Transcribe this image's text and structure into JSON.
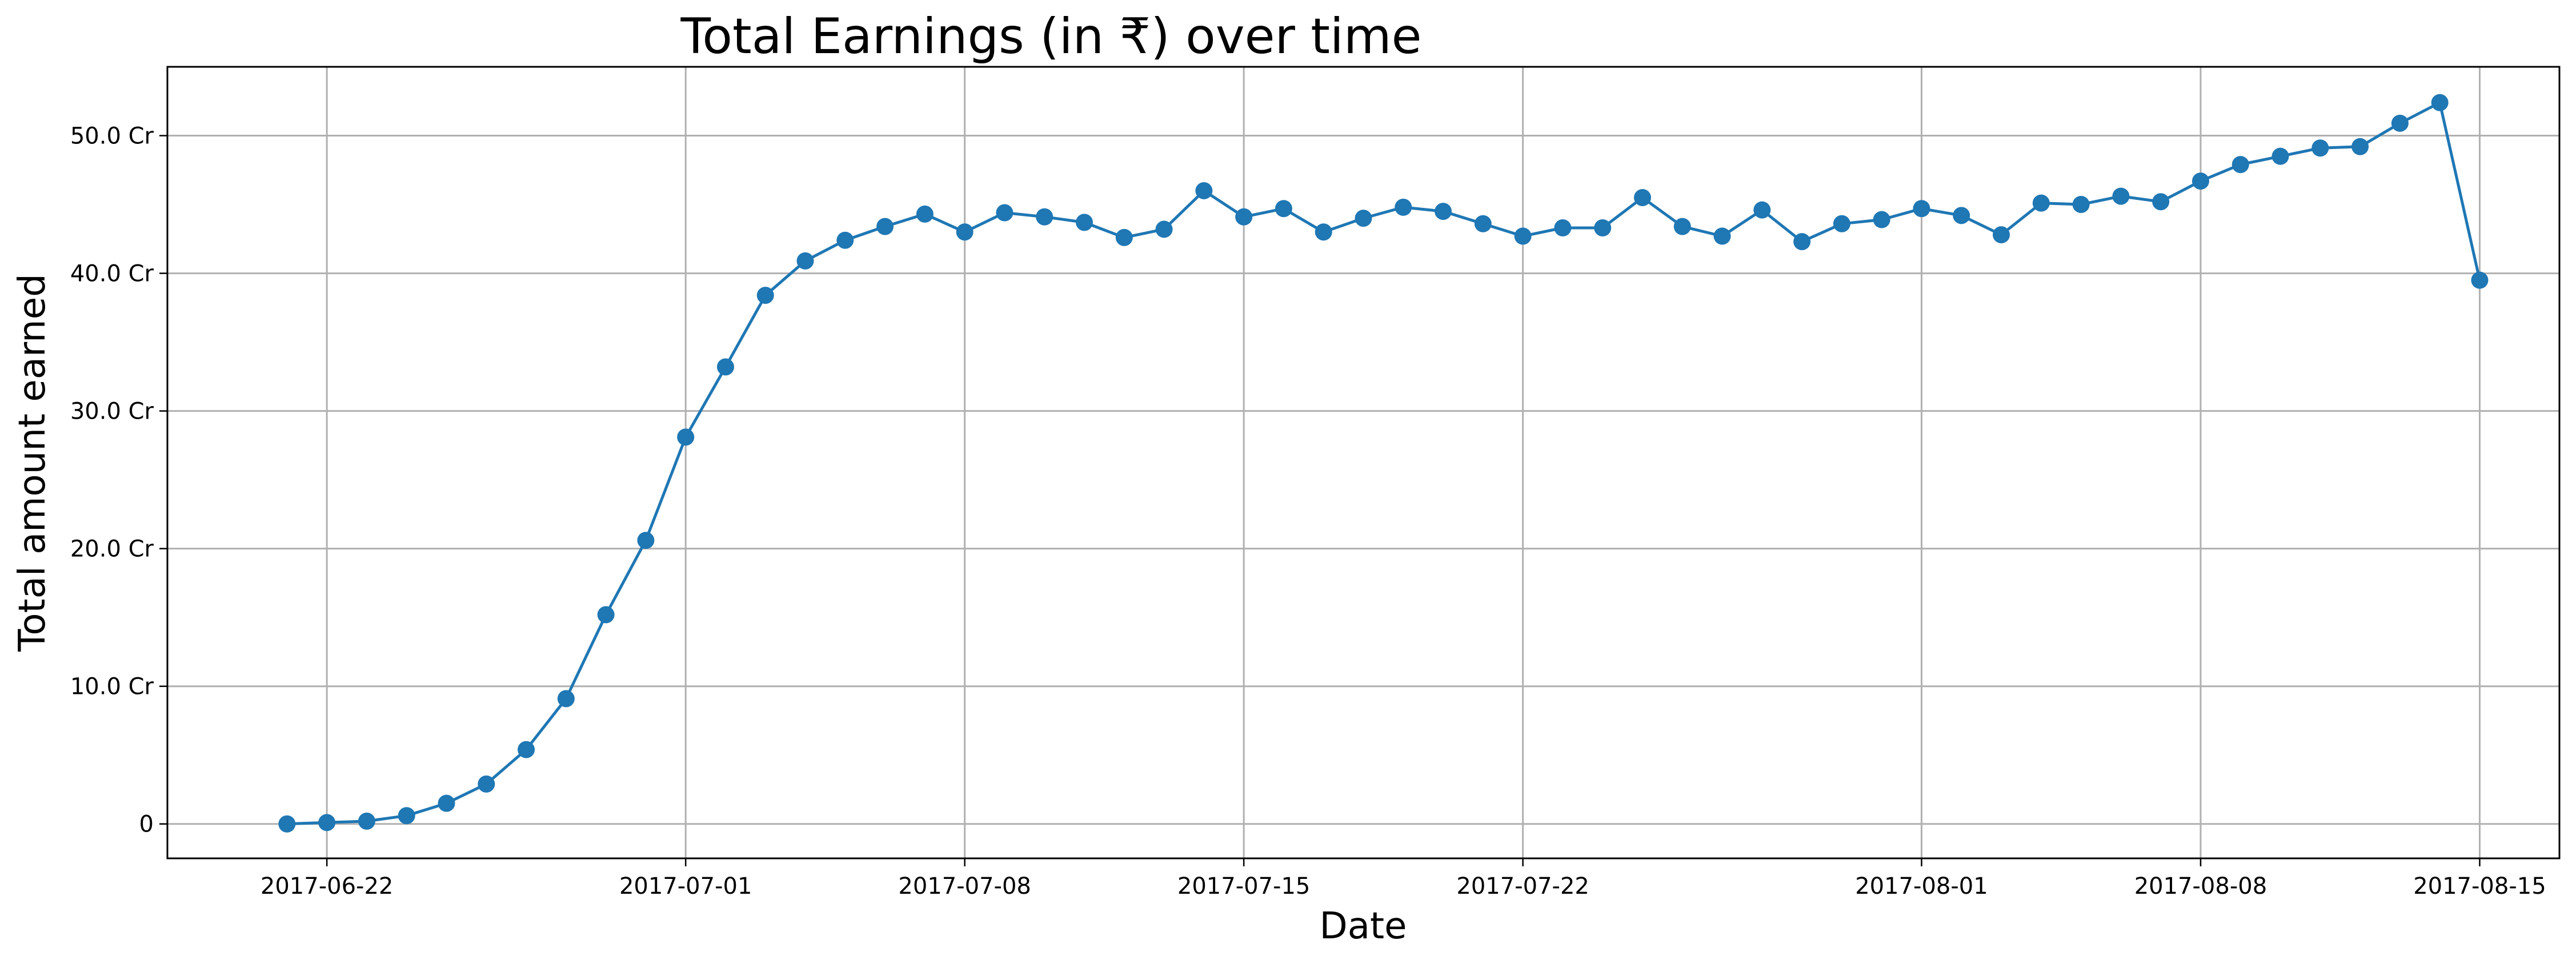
{
  "chart_data": {
    "type": "line",
    "title": "Total Earnings (in ₹) over time",
    "xlabel": "Date",
    "ylabel": "Total amount earned",
    "series_color": "#1f77b4",
    "grid": true,
    "y_unit": "Cr",
    "ylim": [
      -2.5,
      55
    ],
    "xlim": [
      "2017-06-18",
      "2017-08-17"
    ],
    "x_ticks": [
      "2017-06-22",
      "2017-07-01",
      "2017-07-08",
      "2017-07-15",
      "2017-07-22",
      "2017-08-01",
      "2017-08-08",
      "2017-08-15"
    ],
    "y_ticks": [
      {
        "value": 0,
        "label": "0"
      },
      {
        "value": 10,
        "label": "10.0 Cr"
      },
      {
        "value": 20,
        "label": "20.0 Cr"
      },
      {
        "value": 30,
        "label": "30.0 Cr"
      },
      {
        "value": 40,
        "label": "40.0 Cr"
      },
      {
        "value": 50,
        "label": "50.0 Cr"
      }
    ],
    "x": [
      "2017-06-21",
      "2017-06-22",
      "2017-06-23",
      "2017-06-24",
      "2017-06-25",
      "2017-06-26",
      "2017-06-27",
      "2017-06-28",
      "2017-06-29",
      "2017-06-30",
      "2017-07-01",
      "2017-07-02",
      "2017-07-03",
      "2017-07-04",
      "2017-07-05",
      "2017-07-06",
      "2017-07-07",
      "2017-07-08",
      "2017-07-09",
      "2017-07-10",
      "2017-07-11",
      "2017-07-12",
      "2017-07-13",
      "2017-07-14",
      "2017-07-15",
      "2017-07-16",
      "2017-07-17",
      "2017-07-18",
      "2017-07-19",
      "2017-07-20",
      "2017-07-21",
      "2017-07-22",
      "2017-07-23",
      "2017-07-24",
      "2017-07-25",
      "2017-07-26",
      "2017-07-27",
      "2017-07-28",
      "2017-07-29",
      "2017-07-30",
      "2017-07-31",
      "2017-08-01",
      "2017-08-02",
      "2017-08-03",
      "2017-08-04",
      "2017-08-05",
      "2017-08-06",
      "2017-08-07",
      "2017-08-08",
      "2017-08-09",
      "2017-08-10",
      "2017-08-11",
      "2017-08-12",
      "2017-08-13",
      "2017-08-14",
      "2017-08-15"
    ],
    "values": [
      0.0,
      0.1,
      0.2,
      0.6,
      1.5,
      2.9,
      5.4,
      9.1,
      15.2,
      20.6,
      28.1,
      33.2,
      38.4,
      40.9,
      42.4,
      43.4,
      44.3,
      43.0,
      44.4,
      44.1,
      43.7,
      42.6,
      43.2,
      46.0,
      44.1,
      44.7,
      43.0,
      44.0,
      44.8,
      44.5,
      43.6,
      42.7,
      43.3,
      43.3,
      45.5,
      43.4,
      42.7,
      44.6,
      42.3,
      43.6,
      43.9,
      44.7,
      44.2,
      42.8,
      45.1,
      45.0,
      45.6,
      45.2,
      46.7,
      47.9,
      48.5,
      49.1,
      49.2,
      50.9,
      52.4,
      39.5
    ]
  }
}
